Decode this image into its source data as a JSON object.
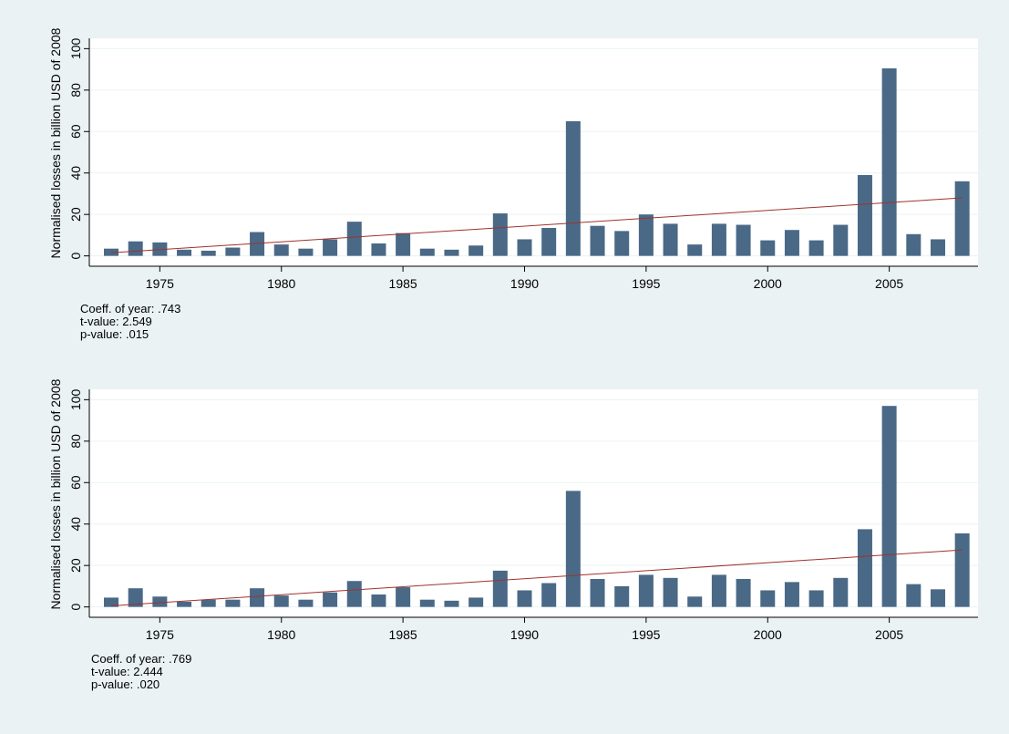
{
  "colors": {
    "background": "#eaf2f3",
    "plot_background": "#ffffff",
    "bar": "#4a6986",
    "fit_line": "#a0322d",
    "grid": "#eaf2f3",
    "axis": "#000000"
  },
  "chart_data": [
    {
      "type": "bar",
      "ylabel": "Normalised losses in billion USD of 2008",
      "xlabel": "",
      "ylim": [
        -5,
        105
      ],
      "yticks": [
        0,
        20,
        40,
        60,
        80,
        100
      ],
      "xticks": [
        1975,
        1980,
        1985,
        1990,
        1995,
        2000,
        2005
      ],
      "grid": true,
      "x": [
        1973,
        1974,
        1975,
        1976,
        1977,
        1978,
        1979,
        1980,
        1981,
        1982,
        1983,
        1984,
        1985,
        1986,
        1987,
        1988,
        1989,
        1990,
        1991,
        1992,
        1993,
        1994,
        1995,
        1996,
        1997,
        1998,
        1999,
        2000,
        2001,
        2002,
        2003,
        2004,
        2005,
        2006,
        2007,
        2008
      ],
      "values": [
        3.5,
        7,
        6.5,
        3,
        2.5,
        4,
        11.5,
        5.5,
        3.5,
        8,
        16.5,
        6,
        11,
        3.5,
        3,
        5,
        20.5,
        8,
        13.5,
        65,
        14.5,
        12,
        20,
        15.5,
        5.5,
        15.5,
        15,
        7.5,
        12.5,
        7.5,
        15,
        39,
        90.5,
        10.5,
        8,
        36
      ],
      "fit_line": {
        "x": [
          1973,
          2008
        ],
        "y": [
          1.5,
          28.0
        ]
      },
      "stats": {
        "coeff": "Coeff. of year: .743",
        "t": "t-value: 2.549",
        "p": "p-value: .015"
      }
    },
    {
      "type": "bar",
      "ylabel": "Normalised losses in billion USD of 2008",
      "xlabel": "",
      "ylim": [
        -5,
        105
      ],
      "yticks": [
        0,
        20,
        40,
        60,
        80,
        100
      ],
      "xticks": [
        1975,
        1980,
        1985,
        1990,
        1995,
        2000,
        2005
      ],
      "grid": true,
      "x": [
        1973,
        1974,
        1975,
        1976,
        1977,
        1978,
        1979,
        1980,
        1981,
        1982,
        1983,
        1984,
        1985,
        1986,
        1987,
        1988,
        1989,
        1990,
        1991,
        1992,
        1993,
        1994,
        1995,
        1996,
        1997,
        1998,
        1999,
        2000,
        2001,
        2002,
        2003,
        2004,
        2005,
        2006,
        2007,
        2008
      ],
      "values": [
        4.5,
        9,
        5,
        2.5,
        3.5,
        3.5,
        9,
        5.5,
        3.5,
        7,
        12.5,
        6,
        9.5,
        3.5,
        3,
        4.5,
        17.5,
        8,
        11.5,
        56,
        13.5,
        10,
        15.5,
        14,
        5,
        15.5,
        13.5,
        8,
        12,
        8,
        14,
        37.5,
        97,
        11,
        8.5,
        35.5
      ],
      "fit_line": {
        "x": [
          1973,
          2008
        ],
        "y": [
          0.5,
          27.5
        ]
      },
      "stats": {
        "coeff": "Coeff. of year: .769",
        "t": "t-value: 2.444",
        "p": "p-value: .020"
      }
    }
  ]
}
